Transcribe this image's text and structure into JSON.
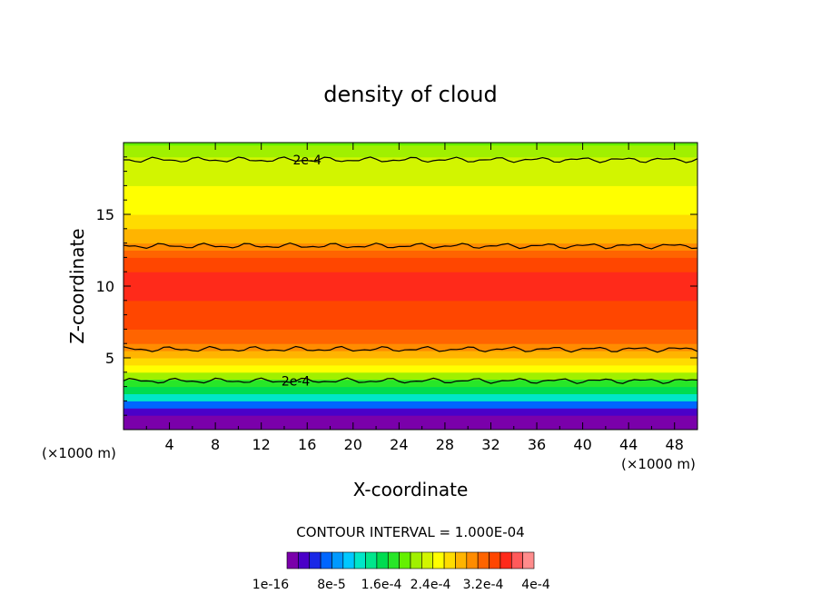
{
  "chart_data": {
    "type": "heatmap",
    "title": "density of cloud",
    "xlabel": "X-coordinate",
    "ylabel": "Z-coordinate",
    "x_unit_label": "(×1000 m)",
    "y_unit_label": "(×1000 m)",
    "xlim": [
      0,
      50
    ],
    "ylim": [
      0,
      20
    ],
    "x_ticks": [
      "4",
      "8",
      "12",
      "16",
      "20",
      "24",
      "28",
      "32",
      "36",
      "40",
      "44",
      "48"
    ],
    "y_ticks": [
      "5",
      "10",
      "15"
    ],
    "contour_interval_text": "CONTOUR INTERVAL = 1.000E-04",
    "contour_labels": [
      "2e-4",
      "2e-4"
    ],
    "colorbar_labels": [
      "1e-16",
      "8e-5",
      "1.6e-4",
      "2.4e-4",
      "3.2e-4",
      "4e-4"
    ],
    "colorbar_range": [
      0,
      0.0004
    ],
    "vertical_profile": {
      "z": [
        0.4,
        1.0,
        1.5,
        2.0,
        2.5,
        3.0,
        3.5,
        4.0,
        4.5,
        5.0,
        5.5,
        6.0,
        7.0,
        8.0,
        9.0,
        10.0,
        11.0,
        12.0,
        12.5,
        13.0,
        14.0,
        15.0,
        16.0,
        17.0,
        18.0,
        19.0,
        19.8
      ],
      "density": [
        0.0,
        2e-05,
        6e-05,
        0.00011,
        0.00015,
        0.00018,
        0.00021,
        0.00024,
        0.00026,
        0.00028,
        0.0003,
        0.00032,
        0.00033,
        0.00034,
        0.00035,
        0.00035,
        0.00034,
        0.00032,
        0.0003,
        0.00028,
        0.00026,
        0.00025,
        0.00024,
        0.00023,
        0.00022,
        0.0002,
        0.00019
      ]
    },
    "contour_lines": [
      {
        "level": "2e-4",
        "z": 3.4
      },
      {
        "level": "3e-4",
        "z": 5.6
      },
      {
        "level": "3e-4",
        "z": 12.8
      },
      {
        "level": "2e-4",
        "z": 18.8
      }
    ],
    "colors": {
      "scale": [
        "#7a00aa",
        "#4a00c8",
        "#1a28e6",
        "#0066ff",
        "#0099ff",
        "#00c8ff",
        "#00e6c8",
        "#00e68c",
        "#00dc50",
        "#28e628",
        "#64f000",
        "#a0f000",
        "#d2f500",
        "#ffff00",
        "#ffdc00",
        "#ffb400",
        "#ff8c00",
        "#ff6400",
        "#ff4600",
        "#ff2a1a",
        "#ff5a5a",
        "#ff8c8c"
      ]
    }
  }
}
